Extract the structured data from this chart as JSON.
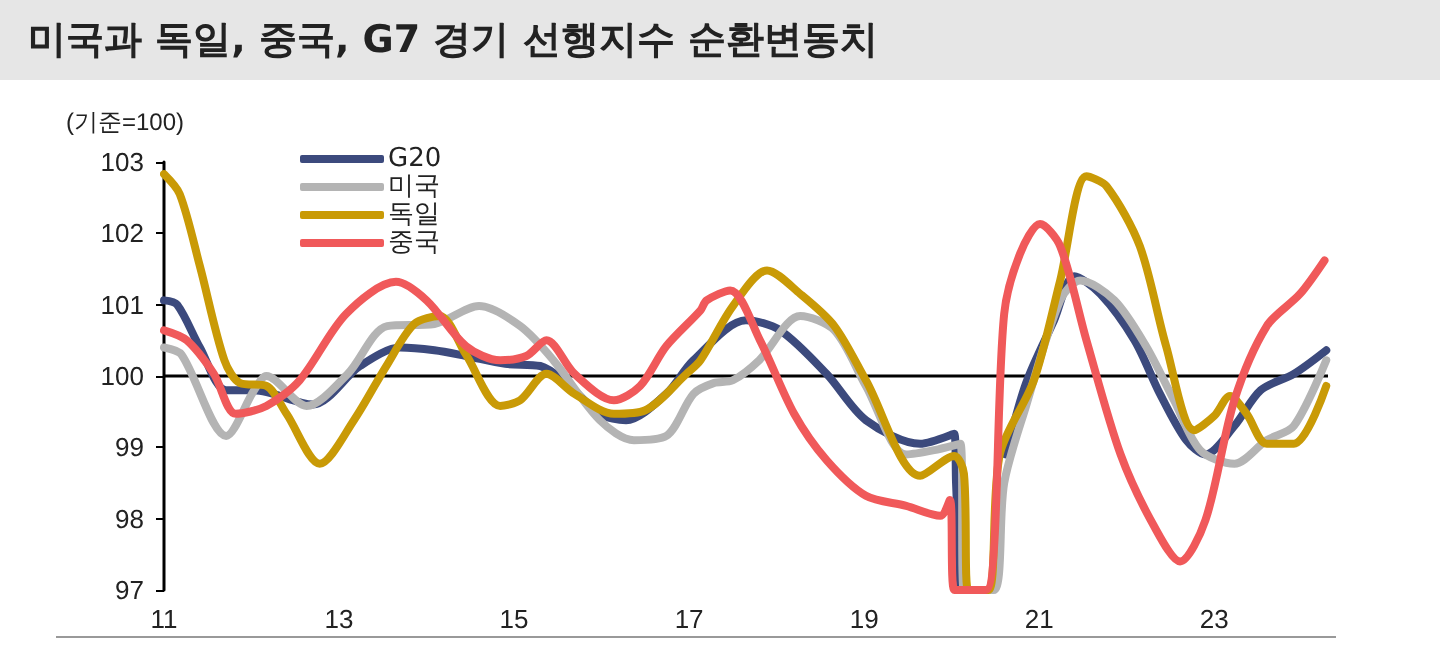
{
  "chart_data": {
    "type": "line",
    "title": "미국과 독일, 중국, G7 경기 선행지수 순환변동치",
    "ylabel": "(기준=100)",
    "xlim": [
      11,
      24.3
    ],
    "xticks": [
      11,
      13,
      15,
      17,
      19,
      21,
      23
    ],
    "ylim": [
      97,
      103
    ],
    "yticks": [
      97,
      98,
      99,
      100,
      101,
      102,
      103
    ],
    "grid": false,
    "legend": "top left",
    "marker": "none",
    "line_style": "solid",
    "ref_lines": [
      {
        "axis": "y",
        "value": 100,
        "color": "#000000"
      }
    ],
    "series": [
      {
        "name": "G20",
        "color": "#3c4a7d",
        "x": [
          11.0,
          11.15,
          11.41,
          11.71,
          12.03,
          12.7,
          13.24,
          13.7,
          14.09,
          14.45,
          14.9,
          15.3,
          15.6,
          15.98,
          16.28,
          16.74,
          17.05,
          17.65,
          18.04,
          18.57,
          19.02,
          19.64,
          20.03,
          20.05,
          20.1,
          20.46,
          20.62,
          20.85,
          21.17,
          21.4,
          21.7,
          22.09,
          22.38,
          22.68,
          22.9,
          23.23,
          23.53,
          23.91,
          24.28
        ],
        "values": [
          101.06,
          101.0,
          100.4,
          99.8,
          99.8,
          99.6,
          100.14,
          100.4,
          100.36,
          100.28,
          100.17,
          100.14,
          99.9,
          99.47,
          99.38,
          99.75,
          100.22,
          100.78,
          100.64,
          100.03,
          99.38,
          99.05,
          99.19,
          98.5,
          97,
          null,
          98.9,
          99.9,
          100.78,
          101.4,
          101.15,
          100.5,
          99.75,
          99.1,
          98.9,
          99.3,
          99.8,
          100.03,
          100.36
        ]
      },
      {
        "name": "미국",
        "color": "#b4b4b4",
        "x": [
          11.0,
          11.2,
          11.71,
          12.03,
          12.17,
          12.63,
          13.1,
          13.55,
          14.09,
          14.6,
          15.07,
          15.45,
          15.98,
          16.37,
          16.74,
          17.05,
          17.28,
          17.5,
          17.8,
          18.27,
          18.66,
          19.02,
          19.48,
          19.8,
          20.1,
          20.14,
          20.48,
          20.6,
          20.85,
          21.24,
          21.47,
          21.86,
          22.22,
          22.54,
          22.84,
          23.23,
          23.6,
          23.91,
          24.28
        ],
        "values": [
          100.4,
          100.3,
          99.16,
          99.8,
          100.0,
          99.58,
          100.03,
          100.7,
          100.73,
          100.98,
          100.7,
          100.22,
          99.38,
          99.1,
          99.16,
          99.75,
          99.9,
          99.94,
          100.22,
          100.84,
          100.64,
          99.86,
          98.9,
          98.96,
          99.05,
          97,
          97,
          98.5,
          99.58,
          101.06,
          101.34,
          101.06,
          100.42,
          99.66,
          98.96,
          98.77,
          99.1,
          99.3,
          100.22
        ]
      },
      {
        "name": "독일",
        "color": "#c99a06",
        "x": [
          11.0,
          11.18,
          11.41,
          11.69,
          11.87,
          12.17,
          12.4,
          12.78,
          13.17,
          13.54,
          13.86,
          14.15,
          14.45,
          14.84,
          15.07,
          15.37,
          15.69,
          16.14,
          16.5,
          16.97,
          17.13,
          17.5,
          17.89,
          18.27,
          18.66,
          19.02,
          19.64,
          20.03,
          20.14,
          20.19,
          20.42,
          20.55,
          20.94,
          21.24,
          21.54,
          21.77,
          22.15,
          22.45,
          22.77,
          23.0,
          23.18,
          23.37,
          23.6,
          23.91,
          24.28
        ],
        "values": [
          102.83,
          102.55,
          101.54,
          100.22,
          99.9,
          99.86,
          99.47,
          98.77,
          99.38,
          100.14,
          100.73,
          100.84,
          100.3,
          99.58,
          99.66,
          100.03,
          99.75,
          99.47,
          99.52,
          100.03,
          100.22,
          100.98,
          101.48,
          101.15,
          100.7,
          99.94,
          98.6,
          98.88,
          98.63,
          97,
          97,
          98.9,
          99.94,
          101.34,
          102.8,
          102.66,
          101.82,
          100.42,
          99.24,
          99.44,
          99.72,
          99.47,
          99.05,
          99.05,
          99.86
        ]
      },
      {
        "name": "중국",
        "color": "#f0595a",
        "x": [
          11.0,
          11.26,
          11.57,
          11.82,
          12.17,
          12.55,
          13.08,
          13.65,
          14.0,
          14.45,
          14.84,
          15.14,
          15.37,
          15.69,
          16.14,
          16.44,
          16.74,
          17.13,
          17.2,
          17.47,
          17.81,
          18.2,
          18.57,
          19.02,
          19.48,
          19.87,
          19.98,
          20.03,
          20.39,
          20.6,
          20.78,
          21.01,
          21.24,
          21.54,
          21.93,
          22.31,
          22.61,
          22.9,
          23.23,
          23.6,
          23.98,
          24.26
        ],
        "values": [
          100.64,
          100.5,
          100.03,
          99.47,
          99.58,
          99.94,
          100.87,
          101.32,
          101.06,
          100.42,
          100.22,
          100.28,
          100.5,
          100.03,
          99.66,
          99.86,
          100.42,
          100.92,
          101.06,
          101.2,
          100.5,
          99.47,
          98.82,
          98.32,
          98.18,
          98.04,
          98.26,
          97,
          97,
          100.87,
          101.71,
          102.13,
          101.82,
          100.5,
          98.9,
          97.9,
          97.4,
          97.98,
          99.66,
          100.7,
          101.15,
          101.62
        ]
      }
    ]
  }
}
